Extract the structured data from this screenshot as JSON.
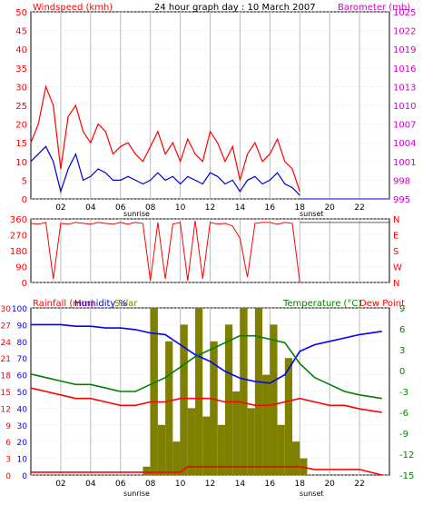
{
  "colors": {
    "wind_gust": "#ff0000",
    "wind_avg": "#0000cc",
    "barometer": "#cc00cc",
    "direction": "#ff0000",
    "rainfall": "#ff0000",
    "humidity": "#0000ff",
    "solar": "#808000",
    "temperature": "#008000",
    "dew_point": "#ff0000",
    "grid_day": "#bbbbbb",
    "night_band": "#dddddd"
  },
  "top_panel": {
    "left_label": "Windspeed (kmh)",
    "title": "24 hour graph day : 10 March 2007",
    "right_label": "Barometer (mb)"
  },
  "bottom_panel": {
    "rain_label": "Rainfall (mm)",
    "humidity_label": "Humidity %",
    "solar_label": "Solar",
    "temp_label": "Temperature (°C)",
    "dew_label": "Dew Point"
  },
  "x_axis": {
    "ticks": [
      "02",
      "04",
      "06",
      "08",
      "10",
      "12",
      "14",
      "16",
      "18",
      "20",
      "22"
    ],
    "sunrise": "sunrise",
    "sunset": "sunset"
  },
  "chart_data": [
    {
      "type": "line",
      "title": "24 hour graph day : 10 March 2007",
      "x_range_hours": [
        0,
        24
      ],
      "y_left": {
        "label": "Windspeed (kmh)",
        "ticks": [
          0,
          5,
          10,
          15,
          20,
          25,
          30,
          35,
          40,
          45,
          50
        ],
        "ylim": [
          0,
          50
        ]
      },
      "y_right": {
        "label": "Barometer (mb)",
        "ticks": [
          995,
          998,
          1001,
          1004,
          1007,
          1010,
          1013,
          1016,
          1019,
          1022,
          1025
        ],
        "ylim": [
          995,
          1025
        ]
      },
      "series": [
        {
          "name": "Windspeed gust",
          "x": [
            0,
            0.5,
            1,
            1.5,
            2,
            2.5,
            3,
            3.5,
            4,
            4.5,
            5,
            5.5,
            6,
            6.5,
            7,
            7.5,
            8,
            8.5,
            9,
            9.5,
            10,
            10.5,
            11,
            11.5,
            12,
            12.5,
            13,
            13.5,
            14,
            14.5,
            15,
            15.5,
            16,
            16.5,
            17,
            17.5,
            18
          ],
          "values": [
            15,
            20,
            30,
            25,
            8,
            22,
            25,
            18,
            15,
            20,
            18,
            12,
            14,
            15,
            12,
            10,
            14,
            18,
            12,
            15,
            10,
            16,
            12,
            10,
            18,
            15,
            10,
            14,
            5,
            12,
            15,
            10,
            12,
            16,
            10,
            8,
            2
          ]
        },
        {
          "name": "Windspeed average",
          "x": [
            0,
            0.5,
            1,
            1.5,
            2,
            2.5,
            3,
            3.5,
            4,
            4.5,
            5,
            5.5,
            6,
            6.5,
            7,
            7.5,
            8,
            8.5,
            9,
            9.5,
            10,
            10.5,
            11,
            11.5,
            12,
            12.5,
            13,
            13.5,
            14,
            14.5,
            15,
            15.5,
            16,
            16.5,
            17,
            17.5,
            18
          ],
          "values": [
            10,
            12,
            14,
            10,
            2,
            8,
            12,
            5,
            6,
            8,
            7,
            5,
            5,
            6,
            5,
            4,
            5,
            7,
            5,
            6,
            4,
            6,
            5,
            4,
            7,
            6,
            4,
            5,
            2,
            5,
            6,
            4,
            5,
            7,
            4,
            3,
            1
          ]
        }
      ]
    },
    {
      "type": "scatter",
      "title": "",
      "x_range_hours": [
        0,
        24
      ],
      "y_ticks": [
        0,
        90,
        180,
        270,
        360
      ],
      "y_right_ticks": [
        "N",
        "W",
        "S",
        "E",
        "N"
      ],
      "ylim": [
        0,
        360
      ],
      "series": [
        {
          "name": "Wind direction",
          "x": [
            0,
            0.5,
            1,
            1.5,
            2,
            2.5,
            3,
            3.5,
            4,
            4.5,
            5,
            5.5,
            6,
            6.5,
            7,
            7.5,
            8,
            8.5,
            9,
            9.5,
            10,
            10.5,
            11,
            11.5,
            12,
            12.5,
            13,
            13.5,
            14,
            14.5,
            15,
            15.5,
            16,
            16.5,
            17,
            17.5,
            18
          ],
          "values": [
            335,
            330,
            340,
            20,
            335,
            330,
            340,
            335,
            330,
            340,
            335,
            330,
            340,
            330,
            340,
            335,
            10,
            340,
            20,
            330,
            340,
            10,
            350,
            20,
            340,
            330,
            335,
            320,
            250,
            30,
            335,
            340,
            340,
            330,
            340,
            335,
            0
          ]
        }
      ]
    },
    {
      "type": "line",
      "title": "",
      "x_range_hours": [
        0,
        24
      ],
      "y_left_rain": {
        "label": "Rainfall (mm)",
        "ticks": [
          0,
          3,
          6,
          9,
          12,
          15,
          18,
          21,
          24,
          27,
          30
        ],
        "ylim": [
          0,
          30
        ]
      },
      "y_left_humidity": {
        "label": "Humidity %",
        "ticks": [
          0,
          10,
          20,
          30,
          40,
          50,
          60,
          70,
          80,
          90,
          100
        ],
        "ylim": [
          0,
          100
        ]
      },
      "y_left_solar": {
        "label": "Solar",
        "ticks": [
          0,
          100,
          200,
          300,
          400,
          500,
          600,
          700,
          800,
          900,
          1000
        ],
        "ylim": [
          0,
          1000
        ]
      },
      "y_right": {
        "label": "Temperature (°C)",
        "ticks": [
          -15,
          -12,
          -9,
          -6,
          -3,
          0,
          3,
          6,
          9
        ],
        "ylim": [
          -15,
          9
        ]
      },
      "series": [
        {
          "name": "Humidity %",
          "x": [
            0,
            1,
            2,
            3,
            4,
            5,
            6,
            7,
            8,
            9,
            10,
            11,
            12,
            13,
            14,
            15,
            16,
            17,
            18,
            19,
            20,
            21,
            22,
            23.5
          ],
          "values": [
            90,
            90,
            90,
            89,
            89,
            88,
            88,
            87,
            85,
            84,
            78,
            72,
            68,
            62,
            58,
            56,
            55,
            60,
            74,
            78,
            80,
            82,
            84,
            86
          ]
        },
        {
          "name": "Temperature (°C)",
          "x": [
            0,
            1,
            2,
            3,
            4,
            5,
            6,
            7,
            8,
            9,
            10,
            11,
            12,
            13,
            14,
            15,
            16,
            17,
            18,
            19,
            20,
            21,
            22,
            23.5
          ],
          "values": [
            -0.5,
            -1,
            -1.5,
            -2,
            -2,
            -2.5,
            -3,
            -3,
            -2,
            -1,
            0.5,
            2,
            3,
            4,
            5,
            5,
            4.5,
            4,
            1,
            -1,
            -2,
            -3,
            -3.5,
            -4
          ]
        },
        {
          "name": "Dew Point",
          "x": [
            0,
            1,
            2,
            3,
            4,
            5,
            6,
            7,
            8,
            9,
            10,
            11,
            12,
            13,
            14,
            15,
            16,
            17,
            18,
            19,
            20,
            21,
            22,
            23.5
          ],
          "values": [
            -2.5,
            -3,
            -3.5,
            -4,
            -4,
            -4.5,
            -5,
            -5,
            -4.5,
            -4.5,
            -4,
            -4,
            -4,
            -4.5,
            -4.5,
            -5,
            -5,
            -4.5,
            -4,
            -4.5,
            -5,
            -5,
            -5.5,
            -6
          ]
        },
        {
          "name": "Rainfall (mm)",
          "x": [
            0,
            1,
            2,
            3,
            4,
            5,
            6,
            7,
            8,
            9,
            10,
            10.5,
            12,
            14,
            16,
            18,
            19,
            20,
            22,
            23.5
          ],
          "values": [
            0.5,
            0.5,
            0.5,
            0.5,
            0.5,
            0.5,
            0.5,
            0.5,
            0.5,
            0.5,
            0.5,
            1.5,
            1.5,
            1.5,
            1.5,
            1.5,
            1,
            1,
            1,
            0
          ]
        },
        {
          "name": "Solar",
          "x": [
            7.5,
            8,
            8.5,
            9,
            9.5,
            10,
            10.5,
            11,
            11.5,
            12,
            12.5,
            13,
            13.5,
            14,
            14.5,
            15,
            15.5,
            16,
            16.5,
            17,
            17.5,
            18,
            18.5
          ],
          "values": [
            50,
            1000,
            300,
            800,
            200,
            900,
            400,
            1000,
            350,
            800,
            300,
            900,
            500,
            1000,
            400,
            1000,
            600,
            900,
            300,
            700,
            200,
            100,
            0
          ]
        }
      ]
    }
  ]
}
